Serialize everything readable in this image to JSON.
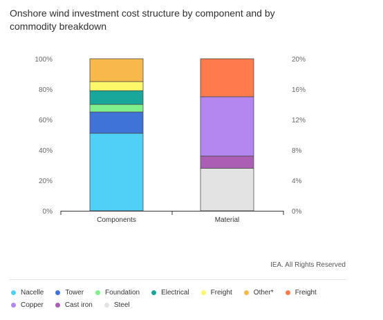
{
  "title": "Onshore wind investment cost structure by component and by commodity breakdown",
  "source": "IEA. All Rights Reserved",
  "chart_data": {
    "type": "bar",
    "stacked": true,
    "categories": [
      "Components",
      "Material"
    ],
    "left_axis": {
      "ticks": [
        "0%",
        "20%",
        "40%",
        "60%",
        "80%",
        "100%"
      ],
      "ylim": [
        0,
        100
      ]
    },
    "right_axis": {
      "ticks": [
        "0%",
        "4%",
        "8%",
        "12%",
        "16%",
        "20%"
      ],
      "ylim": [
        0,
        20
      ]
    },
    "series": [
      {
        "name": "Nacelle",
        "color": "#4fd0f7",
        "category": "Components",
        "value": 51,
        "unit": "%"
      },
      {
        "name": "Tower",
        "color": "#3f74d6",
        "category": "Components",
        "value": 14,
        "unit": "%"
      },
      {
        "name": "Foundation",
        "color": "#7ff08b",
        "category": "Components",
        "value": 5,
        "unit": "%"
      },
      {
        "name": "Electrical",
        "color": "#1aa79b",
        "category": "Components",
        "value": 9,
        "unit": "%"
      },
      {
        "name": "Freight",
        "color": "#fdf86a",
        "category": "Components",
        "value": 6,
        "unit": "%"
      },
      {
        "name": "Other*",
        "color": "#f8b94c",
        "category": "Components",
        "value": 15,
        "unit": "%"
      },
      {
        "name": "Steel",
        "color": "#e3e3e3",
        "category": "Material",
        "value": 5.6,
        "unit": "%"
      },
      {
        "name": "Cast iron",
        "color": "#ab5fb4",
        "category": "Material",
        "value": 1.6,
        "unit": "%"
      },
      {
        "name": "Copper",
        "color": "#b387ef",
        "category": "Material",
        "value": 7.8,
        "unit": "%"
      },
      {
        "name": "Freight",
        "color": "#ff7a4d",
        "category": "Material",
        "value": 5.0,
        "unit": "%"
      }
    ]
  },
  "legend_row1": [
    {
      "label": "Nacelle",
      "color": "#4fd0f7"
    },
    {
      "label": "Tower",
      "color": "#3f74d6"
    },
    {
      "label": "Foundation",
      "color": "#7ff08b"
    },
    {
      "label": "Electrical",
      "color": "#1aa79b"
    },
    {
      "label": "Freight",
      "color": "#fdf86a"
    },
    {
      "label": "Other*",
      "color": "#f8b94c"
    },
    {
      "label": "Freight",
      "color": "#ff7a4d"
    }
  ],
  "legend_row2": [
    {
      "label": "Copper",
      "color": "#b387ef"
    },
    {
      "label": "Cast iron",
      "color": "#ab5fb4"
    },
    {
      "label": "Steel",
      "color": "#e3e3e3"
    }
  ]
}
